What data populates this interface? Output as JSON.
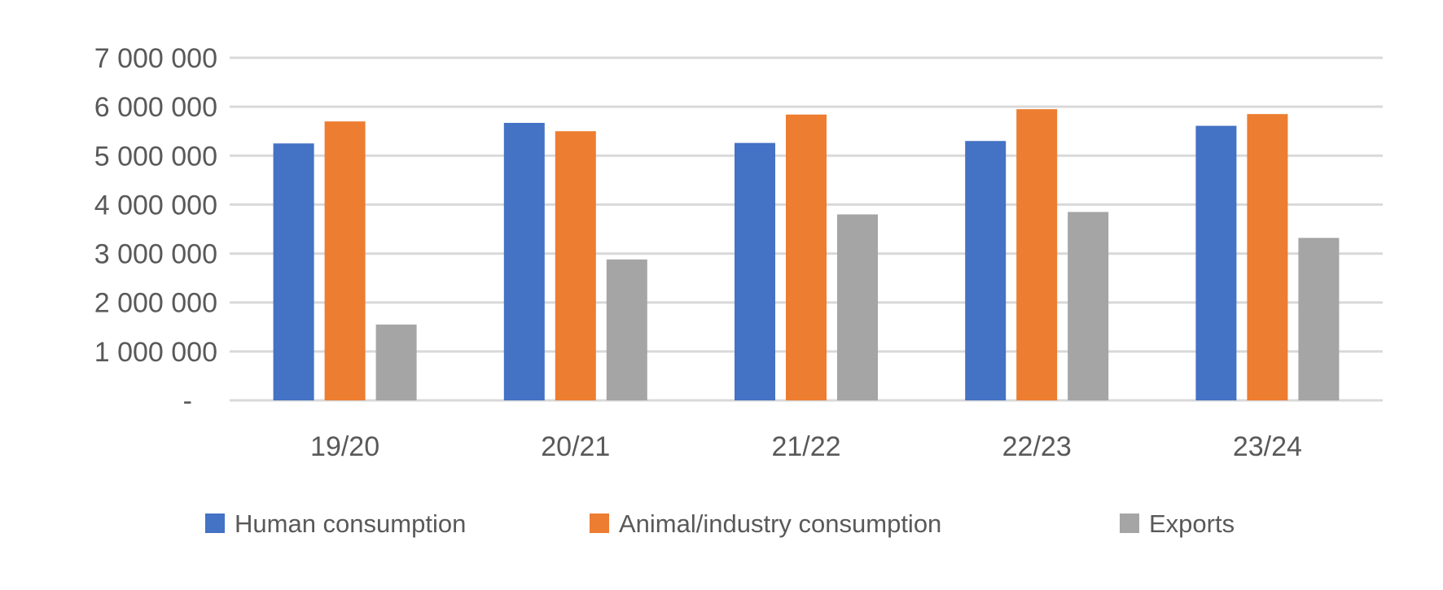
{
  "chart_data": {
    "type": "bar",
    "title": "",
    "xlabel": "",
    "ylabel": "",
    "categories": [
      "19/20",
      "20/21",
      "21/22",
      "22/23",
      "23/24"
    ],
    "series": [
      {
        "name": "Human consumption",
        "color": "#4472c4",
        "values": [
          5250000,
          5670000,
          5260000,
          5300000,
          5610000
        ]
      },
      {
        "name": "Animal/industry consumption",
        "color": "#ed7d31",
        "values": [
          5700000,
          5500000,
          5840000,
          5950000,
          5850000
        ]
      },
      {
        "name": "Exports",
        "color": "#a5a5a5",
        "values": [
          1550000,
          2880000,
          3800000,
          3850000,
          3320000
        ]
      }
    ],
    "ylim": [
      0,
      7000000
    ],
    "yticks": [
      0,
      1000000,
      2000000,
      3000000,
      4000000,
      5000000,
      6000000,
      7000000
    ],
    "ytick_labels": [
      "-",
      "1 000 000",
      "2 000 000",
      "3 000 000",
      "4 000 000",
      "5 000 000",
      "6 000 000",
      "7 000 000"
    ],
    "grid": true,
    "gridline_color": "#d9d9d9",
    "legend_position": "bottom"
  }
}
